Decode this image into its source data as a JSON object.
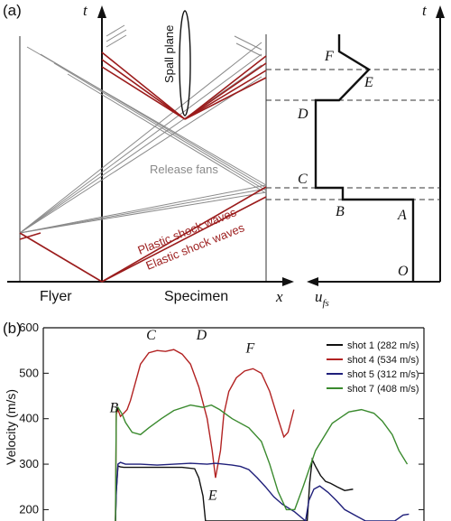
{
  "panel_a": {
    "label": "(a)",
    "axis_t_left": "t",
    "axis_t_right": "t",
    "axis_x": "x",
    "axis_ufs": "u",
    "axis_ufs_sub": "fs",
    "flyer": "Flyer",
    "specimen": "Specimen",
    "spall_plane": "Spall plane",
    "release_fans": "Release fans",
    "plastic_waves": "Plastic shock waves",
    "elastic_waves": "Elastic shock waves",
    "points": [
      "O",
      "A",
      "B",
      "C",
      "D",
      "E",
      "F"
    ],
    "colors": {
      "shock": "#9b1c1c",
      "fan": "#8a8a8a",
      "line": "#111111"
    }
  },
  "panel_b": {
    "label": "(b)",
    "ylabel": "Velocity (m/s)",
    "point_labels": [
      "B",
      "C",
      "D",
      "E",
      "F"
    ]
  },
  "chart_data": {
    "type": "line",
    "ylabel": "Velocity (m/s)",
    "xlabel": "",
    "ylim": [
      175,
      600
    ],
    "yticks": [
      200,
      300,
      400,
      500,
      600
    ],
    "x_note": "x values are arbitrary relative time units (axis unlabeled)",
    "xlim": [
      0,
      370
    ],
    "legend_position": "top-right",
    "series": [
      {
        "name": "shot 1 (282 m/s)",
        "color": "#111111",
        "x": [
          0,
          1,
          3,
          6,
          10,
          40,
          80,
          95,
          100,
          105,
          108,
          230,
          233,
          236,
          240,
          246,
          252,
          258,
          266,
          275,
          285
        ],
        "y": [
          170,
          240,
          296,
          294,
          293,
          293,
          293,
          290,
          270,
          230,
          175,
          175,
          260,
          310,
          295,
          275,
          262,
          258,
          250,
          242,
          245
        ]
      },
      {
        "name": "shot 4 (534 m/s)",
        "color": "#b22222",
        "x": [
          0,
          1,
          3,
          6,
          10,
          14,
          18,
          24,
          30,
          40,
          50,
          60,
          70,
          80,
          90,
          100,
          110,
          116,
          120,
          126,
          130,
          136,
          145,
          155,
          165,
          175,
          185,
          195,
          202,
          207,
          214
        ],
        "y": [
          170,
          410,
          420,
          405,
          412,
          420,
          440,
          480,
          520,
          545,
          550,
          548,
          552,
          542,
          520,
          470,
          400,
          330,
          270,
          330,
          410,
          460,
          490,
          505,
          510,
          500,
          460,
          400,
          360,
          370,
          420
        ]
      },
      {
        "name": "shot 5 (312 m/s)",
        "color": "#1f1f7a",
        "x": [
          0,
          1,
          3,
          6,
          12,
          30,
          50,
          70,
          90,
          110,
          120,
          130,
          140,
          150,
          160,
          170,
          180,
          190,
          200,
          215,
          228,
          232,
          238,
          245,
          255,
          265,
          275,
          290,
          300,
          335,
          345,
          352
        ],
        "y": [
          170,
          240,
          300,
          304,
          300,
          300,
          298,
          300,
          302,
          300,
          302,
          300,
          298,
          295,
          288,
          270,
          250,
          228,
          212,
          195,
          175,
          220,
          245,
          252,
          238,
          220,
          200,
          185,
          175,
          175,
          188,
          190
        ]
      },
      {
        "name": "shot 7 (408 m/s)",
        "color": "#3a8a2e",
        "x": [
          0,
          1,
          3,
          8,
          12,
          20,
          30,
          40,
          55,
          70,
          90,
          105,
          115,
          125,
          140,
          160,
          175,
          185,
          195,
          205,
          215,
          225,
          240,
          260,
          280,
          295,
          310,
          320,
          332,
          340,
          350
        ],
        "y": [
          170,
          420,
          425,
          410,
          392,
          370,
          365,
          380,
          400,
          418,
          430,
          425,
          430,
          420,
          400,
          380,
          350,
          300,
          240,
          200,
          200,
          250,
          330,
          390,
          415,
          420,
          412,
          395,
          365,
          330,
          300
        ]
      }
    ]
  }
}
